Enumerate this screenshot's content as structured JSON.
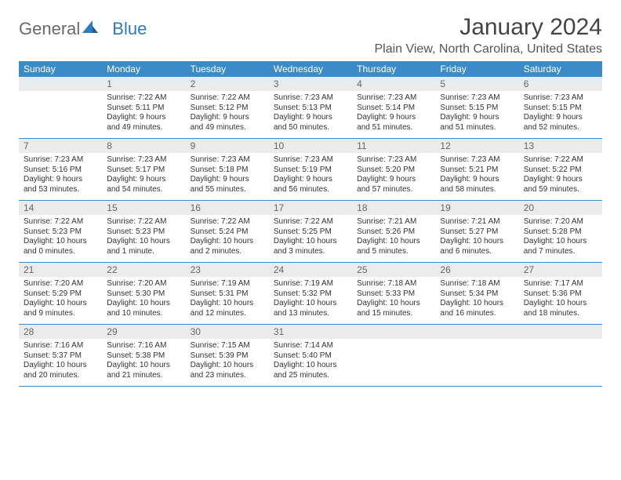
{
  "brand": {
    "part1": "General",
    "part2": "Blue"
  },
  "title": "January 2024",
  "location": "Plain View, North Carolina, United States",
  "colors": {
    "header_bg": "#3b8bc9",
    "header_fg": "#ffffff",
    "daynum_bg": "#ebebeb",
    "daynum_fg": "#666666",
    "text": "#333333",
    "rule": "#3b8bc9",
    "logo_gray": "#6a6a6a",
    "logo_blue": "#2a7bbf"
  },
  "layout": {
    "columns": 7,
    "rows": 5,
    "day_font_size": 10,
    "weekday_font_size": 12,
    "title_font_size": 30,
    "location_font_size": 16
  },
  "weekdays": [
    "Sunday",
    "Monday",
    "Tuesday",
    "Wednesday",
    "Thursday",
    "Friday",
    "Saturday"
  ],
  "first_weekday_index": 1,
  "days": [
    {
      "n": 1,
      "sunrise": "7:22 AM",
      "sunset": "5:11 PM",
      "daylight": "9 hours and 49 minutes."
    },
    {
      "n": 2,
      "sunrise": "7:22 AM",
      "sunset": "5:12 PM",
      "daylight": "9 hours and 49 minutes."
    },
    {
      "n": 3,
      "sunrise": "7:23 AM",
      "sunset": "5:13 PM",
      "daylight": "9 hours and 50 minutes."
    },
    {
      "n": 4,
      "sunrise": "7:23 AM",
      "sunset": "5:14 PM",
      "daylight": "9 hours and 51 minutes."
    },
    {
      "n": 5,
      "sunrise": "7:23 AM",
      "sunset": "5:15 PM",
      "daylight": "9 hours and 51 minutes."
    },
    {
      "n": 6,
      "sunrise": "7:23 AM",
      "sunset": "5:15 PM",
      "daylight": "9 hours and 52 minutes."
    },
    {
      "n": 7,
      "sunrise": "7:23 AM",
      "sunset": "5:16 PM",
      "daylight": "9 hours and 53 minutes."
    },
    {
      "n": 8,
      "sunrise": "7:23 AM",
      "sunset": "5:17 PM",
      "daylight": "9 hours and 54 minutes."
    },
    {
      "n": 9,
      "sunrise": "7:23 AM",
      "sunset": "5:18 PM",
      "daylight": "9 hours and 55 minutes."
    },
    {
      "n": 10,
      "sunrise": "7:23 AM",
      "sunset": "5:19 PM",
      "daylight": "9 hours and 56 minutes."
    },
    {
      "n": 11,
      "sunrise": "7:23 AM",
      "sunset": "5:20 PM",
      "daylight": "9 hours and 57 minutes."
    },
    {
      "n": 12,
      "sunrise": "7:23 AM",
      "sunset": "5:21 PM",
      "daylight": "9 hours and 58 minutes."
    },
    {
      "n": 13,
      "sunrise": "7:22 AM",
      "sunset": "5:22 PM",
      "daylight": "9 hours and 59 minutes."
    },
    {
      "n": 14,
      "sunrise": "7:22 AM",
      "sunset": "5:23 PM",
      "daylight": "10 hours and 0 minutes."
    },
    {
      "n": 15,
      "sunrise": "7:22 AM",
      "sunset": "5:23 PM",
      "daylight": "10 hours and 1 minute."
    },
    {
      "n": 16,
      "sunrise": "7:22 AM",
      "sunset": "5:24 PM",
      "daylight": "10 hours and 2 minutes."
    },
    {
      "n": 17,
      "sunrise": "7:22 AM",
      "sunset": "5:25 PM",
      "daylight": "10 hours and 3 minutes."
    },
    {
      "n": 18,
      "sunrise": "7:21 AM",
      "sunset": "5:26 PM",
      "daylight": "10 hours and 5 minutes."
    },
    {
      "n": 19,
      "sunrise": "7:21 AM",
      "sunset": "5:27 PM",
      "daylight": "10 hours and 6 minutes."
    },
    {
      "n": 20,
      "sunrise": "7:20 AM",
      "sunset": "5:28 PM",
      "daylight": "10 hours and 7 minutes."
    },
    {
      "n": 21,
      "sunrise": "7:20 AM",
      "sunset": "5:29 PM",
      "daylight": "10 hours and 9 minutes."
    },
    {
      "n": 22,
      "sunrise": "7:20 AM",
      "sunset": "5:30 PM",
      "daylight": "10 hours and 10 minutes."
    },
    {
      "n": 23,
      "sunrise": "7:19 AM",
      "sunset": "5:31 PM",
      "daylight": "10 hours and 12 minutes."
    },
    {
      "n": 24,
      "sunrise": "7:19 AM",
      "sunset": "5:32 PM",
      "daylight": "10 hours and 13 minutes."
    },
    {
      "n": 25,
      "sunrise": "7:18 AM",
      "sunset": "5:33 PM",
      "daylight": "10 hours and 15 minutes."
    },
    {
      "n": 26,
      "sunrise": "7:18 AM",
      "sunset": "5:34 PM",
      "daylight": "10 hours and 16 minutes."
    },
    {
      "n": 27,
      "sunrise": "7:17 AM",
      "sunset": "5:36 PM",
      "daylight": "10 hours and 18 minutes."
    },
    {
      "n": 28,
      "sunrise": "7:16 AM",
      "sunset": "5:37 PM",
      "daylight": "10 hours and 20 minutes."
    },
    {
      "n": 29,
      "sunrise": "7:16 AM",
      "sunset": "5:38 PM",
      "daylight": "10 hours and 21 minutes."
    },
    {
      "n": 30,
      "sunrise": "7:15 AM",
      "sunset": "5:39 PM",
      "daylight": "10 hours and 23 minutes."
    },
    {
      "n": 31,
      "sunrise": "7:14 AM",
      "sunset": "5:40 PM",
      "daylight": "10 hours and 25 minutes."
    }
  ],
  "labels": {
    "sunrise": "Sunrise:",
    "sunset": "Sunset:",
    "daylight": "Daylight:"
  }
}
